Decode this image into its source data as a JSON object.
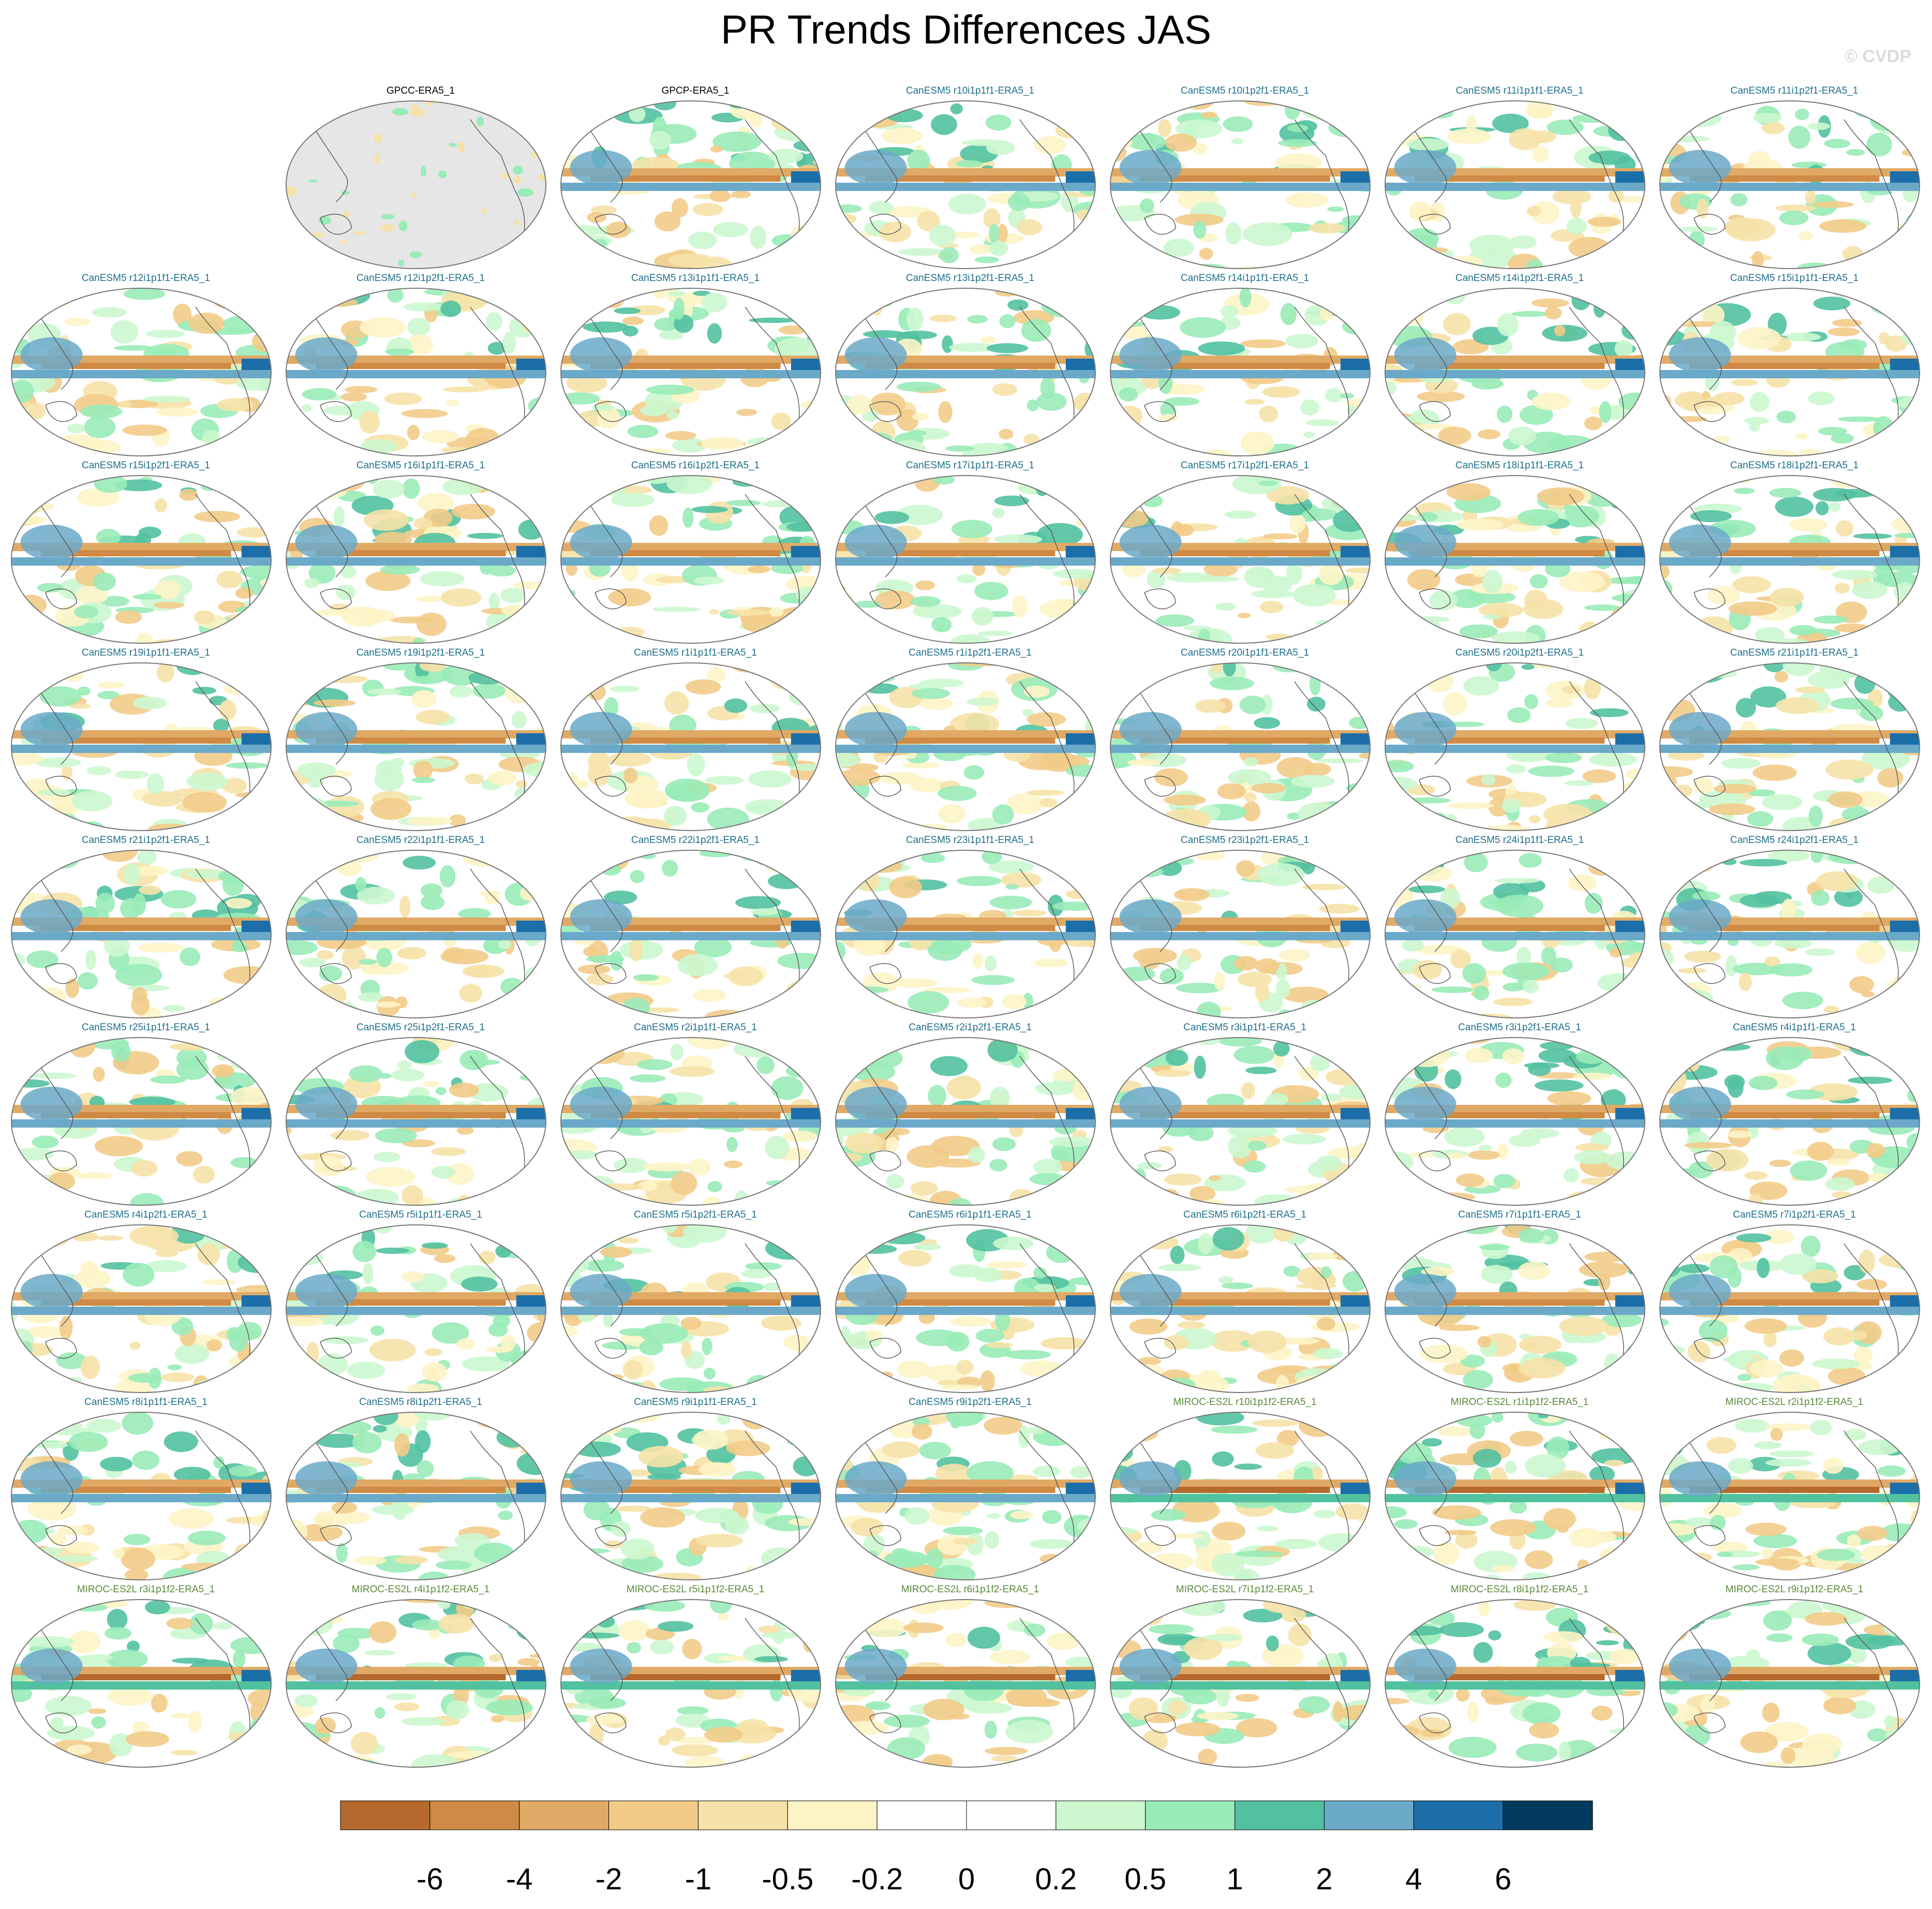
{
  "title": "PR Trends Differences JAS",
  "watermark": "© CVDP",
  "colors": {
    "obs_title": "#000000",
    "canesm5_title": "#1f6f8b",
    "miroc_title": "#5a8a3a",
    "ocean_missing": "#e6e6e6",
    "coast": "#555555"
  },
  "panels": [
    {
      "label": "GPCC-ERA5_1",
      "group": "obs",
      "mask": "land"
    },
    {
      "label": "GPCP-ERA5_1",
      "group": "obs"
    },
    {
      "label": "CanESM5 r10i1p1f1-ERA5_1",
      "group": "canesm5"
    },
    {
      "label": "CanESM5 r10i1p2f1-ERA5_1",
      "group": "canesm5"
    },
    {
      "label": "CanESM5 r11i1p1f1-ERA5_1",
      "group": "canesm5"
    },
    {
      "label": "CanESM5 r11i1p2f1-ERA5_1",
      "group": "canesm5"
    },
    {
      "label": "CanESM5 r12i1p1f1-ERA5_1",
      "group": "canesm5"
    },
    {
      "label": "CanESM5 r12i1p2f1-ERA5_1",
      "group": "canesm5"
    },
    {
      "label": "CanESM5 r13i1p1f1-ERA5_1",
      "group": "canesm5"
    },
    {
      "label": "CanESM5 r13i1p2f1-ERA5_1",
      "group": "canesm5"
    },
    {
      "label": "CanESM5 r14i1p1f1-ERA5_1",
      "group": "canesm5"
    },
    {
      "label": "CanESM5 r14i1p2f1-ERA5_1",
      "group": "canesm5"
    },
    {
      "label": "CanESM5 r15i1p1f1-ERA5_1",
      "group": "canesm5"
    },
    {
      "label": "CanESM5 r15i1p2f1-ERA5_1",
      "group": "canesm5"
    },
    {
      "label": "CanESM5 r16i1p1f1-ERA5_1",
      "group": "canesm5"
    },
    {
      "label": "CanESM5 r16i1p2f1-ERA5_1",
      "group": "canesm5"
    },
    {
      "label": "CanESM5 r17i1p1f1-ERA5_1",
      "group": "canesm5"
    },
    {
      "label": "CanESM5 r17i1p2f1-ERA5_1",
      "group": "canesm5"
    },
    {
      "label": "CanESM5 r18i1p1f1-ERA5_1",
      "group": "canesm5"
    },
    {
      "label": "CanESM5 r18i1p2f1-ERA5_1",
      "group": "canesm5"
    },
    {
      "label": "CanESM5 r19i1p1f1-ERA5_1",
      "group": "canesm5"
    },
    {
      "label": "CanESM5 r19i1p2f1-ERA5_1",
      "group": "canesm5"
    },
    {
      "label": "CanESM5 r1i1p1f1-ERA5_1",
      "group": "canesm5"
    },
    {
      "label": "CanESM5 r1i1p2f1-ERA5_1",
      "group": "canesm5"
    },
    {
      "label": "CanESM5 r20i1p1f1-ERA5_1",
      "group": "canesm5"
    },
    {
      "label": "CanESM5 r20i1p2f1-ERA5_1",
      "group": "canesm5"
    },
    {
      "label": "CanESM5 r21i1p1f1-ERA5_1",
      "group": "canesm5"
    },
    {
      "label": "CanESM5 r21i1p2f1-ERA5_1",
      "group": "canesm5"
    },
    {
      "label": "CanESM5 r22i1p1f1-ERA5_1",
      "group": "canesm5"
    },
    {
      "label": "CanESM5 r22i1p2f1-ERA5_1",
      "group": "canesm5"
    },
    {
      "label": "CanESM5 r23i1p1f1-ERA5_1",
      "group": "canesm5"
    },
    {
      "label": "CanESM5 r23i1p2f1-ERA5_1",
      "group": "canesm5"
    },
    {
      "label": "CanESM5 r24i1p1f1-ERA5_1",
      "group": "canesm5"
    },
    {
      "label": "CanESM5 r24i1p2f1-ERA5_1",
      "group": "canesm5"
    },
    {
      "label": "CanESM5 r25i1p1f1-ERA5_1",
      "group": "canesm5"
    },
    {
      "label": "CanESM5 r25i1p2f1-ERA5_1",
      "group": "canesm5"
    },
    {
      "label": "CanESM5 r2i1p1f1-ERA5_1",
      "group": "canesm5"
    },
    {
      "label": "CanESM5 r2i1p2f1-ERA5_1",
      "group": "canesm5"
    },
    {
      "label": "CanESM5 r3i1p1f1-ERA5_1",
      "group": "canesm5"
    },
    {
      "label": "CanESM5 r3i1p2f1-ERA5_1",
      "group": "canesm5"
    },
    {
      "label": "CanESM5 r4i1p1f1-ERA5_1",
      "group": "canesm5"
    },
    {
      "label": "CanESM5 r4i1p2f1-ERA5_1",
      "group": "canesm5"
    },
    {
      "label": "CanESM5 r5i1p1f1-ERA5_1",
      "group": "canesm5"
    },
    {
      "label": "CanESM5 r5i1p2f1-ERA5_1",
      "group": "canesm5"
    },
    {
      "label": "CanESM5 r6i1p1f1-ERA5_1",
      "group": "canesm5"
    },
    {
      "label": "CanESM5 r6i1p2f1-ERA5_1",
      "group": "canesm5"
    },
    {
      "label": "CanESM5 r7i1p1f1-ERA5_1",
      "group": "canesm5"
    },
    {
      "label": "CanESM5 r7i1p2f1-ERA5_1",
      "group": "canesm5"
    },
    {
      "label": "CanESM5 r8i1p1f1-ERA5_1",
      "group": "canesm5"
    },
    {
      "label": "CanESM5 r8i1p2f1-ERA5_1",
      "group": "canesm5"
    },
    {
      "label": "CanESM5 r9i1p1f1-ERA5_1",
      "group": "canesm5"
    },
    {
      "label": "CanESM5 r9i1p2f1-ERA5_1",
      "group": "canesm5"
    },
    {
      "label": "MIROC-ES2L r10i1p1f2-ERA5_1",
      "group": "miroc"
    },
    {
      "label": "MIROC-ES2L r1i1p1f2-ERA5_1",
      "group": "miroc"
    },
    {
      "label": "MIROC-ES2L r2i1p1f2-ERA5_1",
      "group": "miroc"
    },
    {
      "label": "MIROC-ES2L r3i1p1f2-ERA5_1",
      "group": "miroc"
    },
    {
      "label": "MIROC-ES2L r4i1p1f2-ERA5_1",
      "group": "miroc"
    },
    {
      "label": "MIROC-ES2L r5i1p1f2-ERA5_1",
      "group": "miroc"
    },
    {
      "label": "MIROC-ES2L r6i1p1f2-ERA5_1",
      "group": "miroc"
    },
    {
      "label": "MIROC-ES2L r7i1p1f2-ERA5_1",
      "group": "miroc"
    },
    {
      "label": "MIROC-ES2L r8i1p1f2-ERA5_1",
      "group": "miroc"
    },
    {
      "label": "MIROC-ES2L r9i1p1f2-ERA5_1",
      "group": "miroc"
    }
  ],
  "colorbar": {
    "colors": [
      "#b5692c",
      "#cf8a45",
      "#e0aa66",
      "#f2cb88",
      "#f6e2a8",
      "#fdf4c6",
      "#ffffff",
      "#ffffff",
      "#ccf7cf",
      "#99ebb8",
      "#52c1a0",
      "#6ba9c9",
      "#1b6ea8",
      "#033b5e"
    ],
    "labels": [
      "-6",
      "-4",
      "-2",
      "-1",
      "-0.5",
      "-0.2",
      "0",
      "0.2",
      "0.5",
      "1",
      "2",
      "4",
      "6"
    ]
  }
}
